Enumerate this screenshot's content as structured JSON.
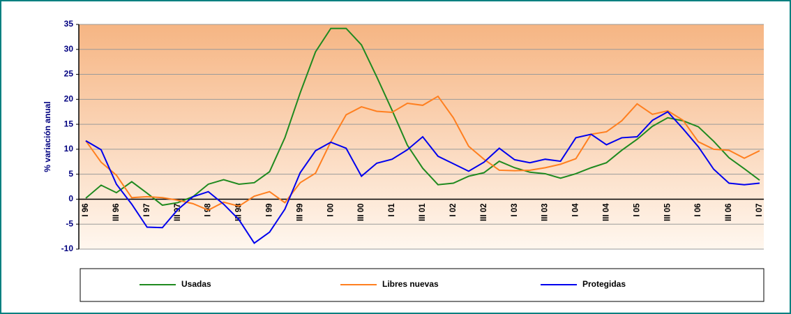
{
  "chart_data": {
    "type": "line",
    "y_label": "% variación anual",
    "categories": [
      "I 96",
      null,
      "III 96",
      null,
      "I 97",
      null,
      "III 97",
      null,
      "I 98",
      null,
      "III 98",
      null,
      "I 99",
      null,
      "III 99",
      null,
      "I 00",
      null,
      "III 00",
      null,
      "I 01",
      null,
      "III 01",
      null,
      "I 02",
      null,
      "III 02",
      null,
      "I 03",
      null,
      "III 03",
      null,
      "I 04",
      null,
      "III 04",
      null,
      "I 05",
      null,
      "III 05",
      null,
      "I 06",
      null,
      "III 06",
      null,
      "I 07"
    ],
    "series": [
      {
        "name": "Usadas",
        "color": "#1f8a1f",
        "values": [
          0.2,
          2.8,
          1.3,
          3.5,
          1.2,
          -1.2,
          -0.7,
          0.5,
          3,
          3.9,
          3,
          3.3,
          5.5,
          12.3,
          21.3,
          29.5,
          34.2,
          34.2,
          30.9,
          24.5,
          17.8,
          10.8,
          6.2,
          2.9,
          3.2,
          4.6,
          5.3,
          7.6,
          6.3,
          5.4,
          5.1,
          4.2,
          5.1,
          6.3,
          7.3,
          9.8,
          12,
          14.6,
          16.3,
          15.7,
          14.5,
          11.6,
          8.3,
          6.1,
          3.8
        ]
      },
      {
        "name": "Libres nuevas",
        "color": "#ff7f1f",
        "values": [
          11.7,
          7.4,
          4.8,
          0.3,
          0.5,
          0.3,
          -0.2,
          -0.9,
          -2.2,
          -0.6,
          -1.4,
          0.6,
          1.5,
          -0.7,
          3.3,
          5.2,
          11.5,
          16.9,
          18.5,
          17.6,
          17.4,
          19.2,
          18.8,
          20.6,
          16.3,
          10.6,
          8,
          5.8,
          5.7,
          5.8,
          6.3,
          7,
          8.1,
          13,
          13.5,
          15.7,
          19.1,
          17,
          17.7,
          15.8,
          11.5,
          10,
          9.8,
          8.2,
          9.7
        ]
      },
      {
        "name": "Protegidas",
        "color": "#0000ee",
        "values": [
          11.7,
          9.9,
          3,
          -1,
          -5.6,
          -5.7,
          -2.1,
          0.5,
          1.5,
          -1,
          -4.1,
          -8.8,
          -6.6,
          -2,
          5.3,
          9.7,
          11.4,
          10.2,
          4.6,
          7.2,
          8,
          9.9,
          12.5,
          8.6,
          7.1,
          5.6,
          7.4,
          10.2,
          7.9,
          7.3,
          8,
          7.6,
          12.3,
          13,
          10.9,
          12.3,
          12.5,
          15.8,
          17.5,
          14.1,
          10.5,
          6,
          3.2,
          2.9,
          3.2
        ]
      }
    ],
    "ylim": [
      -10,
      35
    ],
    "yticks": [
      -10,
      -5,
      0,
      5,
      10,
      15,
      20,
      25,
      30,
      35
    ],
    "grid": true,
    "legend": "bottom"
  }
}
